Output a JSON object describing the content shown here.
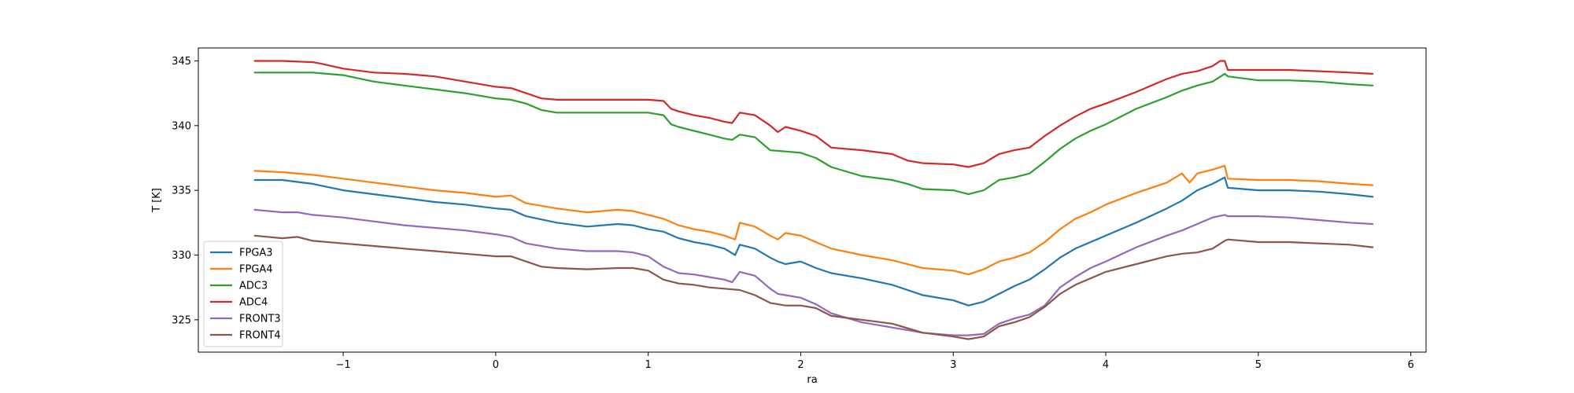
{
  "chart_data": {
    "type": "line",
    "title": "",
    "xlabel": "ra",
    "ylabel": "T [K]",
    "xlim": [
      -1.95,
      6.1
    ],
    "ylim": [
      322.5,
      346.0
    ],
    "xticks": [
      -1,
      0,
      1,
      2,
      3,
      4,
      5,
      6
    ],
    "xtick_labels": [
      "−1",
      "0",
      "1",
      "2",
      "3",
      "4",
      "5",
      "6"
    ],
    "yticks": [
      325,
      330,
      335,
      340,
      345
    ],
    "ytick_labels": [
      "325",
      "330",
      "335",
      "340",
      "345"
    ],
    "grid": false,
    "legend_position": "lower-left",
    "series": [
      {
        "name": "FPGA3",
        "color": "#1f77b4",
        "x": [
          -1.58,
          -1.4,
          -1.2,
          -1.0,
          -0.8,
          -0.6,
          -0.4,
          -0.2,
          0.0,
          0.1,
          0.2,
          0.4,
          0.6,
          0.8,
          0.9,
          1.0,
          1.1,
          1.2,
          1.3,
          1.4,
          1.5,
          1.57,
          1.6,
          1.7,
          1.8,
          1.85,
          1.9,
          2.0,
          2.1,
          2.2,
          2.4,
          2.6,
          2.8,
          3.0,
          3.1,
          3.2,
          3.3,
          3.4,
          3.5,
          3.6,
          3.7,
          3.8,
          3.9,
          4.0,
          4.2,
          4.4,
          4.5,
          4.6,
          4.7,
          4.78,
          4.8,
          5.0,
          5.2,
          5.4,
          5.6,
          5.75
        ],
        "y": [
          335.8,
          335.8,
          335.5,
          335.0,
          334.7,
          334.4,
          334.1,
          333.9,
          333.6,
          333.5,
          333.0,
          332.5,
          332.2,
          332.4,
          332.3,
          332.0,
          331.8,
          331.3,
          331.0,
          330.8,
          330.5,
          330.0,
          330.8,
          330.5,
          329.8,
          329.5,
          329.3,
          329.5,
          329.0,
          328.6,
          328.2,
          327.7,
          326.9,
          326.5,
          326.1,
          326.4,
          327.0,
          327.6,
          328.1,
          328.9,
          329.8,
          330.5,
          331.0,
          331.5,
          332.5,
          333.6,
          334.2,
          335.0,
          335.5,
          336.0,
          335.2,
          335.0,
          335.0,
          334.9,
          334.7,
          334.5
        ]
      },
      {
        "name": "FPGA4",
        "color": "#ff7f0e",
        "x": [
          -1.58,
          -1.4,
          -1.2,
          -1.0,
          -0.8,
          -0.6,
          -0.4,
          -0.2,
          0.0,
          0.1,
          0.2,
          0.4,
          0.6,
          0.8,
          0.9,
          1.0,
          1.1,
          1.2,
          1.3,
          1.4,
          1.5,
          1.57,
          1.6,
          1.7,
          1.8,
          1.85,
          1.9,
          2.0,
          2.1,
          2.2,
          2.4,
          2.6,
          2.8,
          3.0,
          3.1,
          3.2,
          3.3,
          3.4,
          3.5,
          3.6,
          3.7,
          3.8,
          3.9,
          4.0,
          4.2,
          4.4,
          4.5,
          4.55,
          4.6,
          4.7,
          4.78,
          4.8,
          5.0,
          5.2,
          5.4,
          5.6,
          5.75
        ],
        "y": [
          336.5,
          336.4,
          336.2,
          335.9,
          335.6,
          335.3,
          335.0,
          334.8,
          334.5,
          334.6,
          334.0,
          333.6,
          333.3,
          333.5,
          333.4,
          333.1,
          332.8,
          332.3,
          332.0,
          331.8,
          331.5,
          331.2,
          332.5,
          332.2,
          331.5,
          331.2,
          331.7,
          331.5,
          331.0,
          330.5,
          330.0,
          329.6,
          329.0,
          328.8,
          328.5,
          328.9,
          329.5,
          329.8,
          330.2,
          331.0,
          332.0,
          332.8,
          333.3,
          333.9,
          334.8,
          335.6,
          336.3,
          335.6,
          336.3,
          336.6,
          336.9,
          335.9,
          335.8,
          335.8,
          335.7,
          335.5,
          335.4
        ]
      },
      {
        "name": "ADC3",
        "color": "#2ca02c",
        "x": [
          -1.58,
          -1.4,
          -1.2,
          -1.0,
          -0.8,
          -0.6,
          -0.4,
          -0.2,
          0.0,
          0.1,
          0.2,
          0.3,
          0.4,
          0.6,
          0.8,
          1.0,
          1.1,
          1.15,
          1.2,
          1.3,
          1.4,
          1.5,
          1.55,
          1.6,
          1.7,
          1.75,
          1.8,
          1.9,
          2.0,
          2.1,
          2.2,
          2.4,
          2.6,
          2.7,
          2.8,
          3.0,
          3.1,
          3.2,
          3.3,
          3.4,
          3.5,
          3.6,
          3.7,
          3.8,
          3.9,
          4.0,
          4.2,
          4.4,
          4.5,
          4.6,
          4.7,
          4.78,
          4.8,
          5.0,
          5.2,
          5.4,
          5.6,
          5.75
        ],
        "y": [
          344.1,
          344.1,
          344.1,
          343.9,
          343.4,
          343.1,
          342.8,
          342.5,
          342.1,
          342.0,
          341.7,
          341.2,
          341.0,
          341.0,
          341.0,
          341.0,
          340.8,
          340.1,
          339.9,
          339.6,
          339.3,
          339.0,
          338.9,
          339.3,
          339.1,
          338.6,
          338.1,
          338.0,
          337.9,
          337.5,
          336.8,
          336.1,
          335.8,
          335.5,
          335.1,
          335.0,
          334.7,
          335.0,
          335.8,
          336.0,
          336.3,
          337.2,
          338.2,
          339.0,
          339.6,
          340.1,
          341.3,
          342.2,
          342.7,
          343.1,
          343.4,
          344.0,
          343.8,
          343.5,
          343.5,
          343.4,
          343.2,
          343.1
        ]
      },
      {
        "name": "ADC4",
        "color": "#d62728",
        "x": [
          -1.58,
          -1.4,
          -1.2,
          -1.15,
          -1.0,
          -0.8,
          -0.6,
          -0.4,
          -0.2,
          0.0,
          0.1,
          0.2,
          0.3,
          0.4,
          0.6,
          0.8,
          1.0,
          1.1,
          1.15,
          1.2,
          1.3,
          1.4,
          1.5,
          1.55,
          1.6,
          1.7,
          1.75,
          1.8,
          1.85,
          1.9,
          2.0,
          2.1,
          2.2,
          2.4,
          2.6,
          2.7,
          2.8,
          3.0,
          3.1,
          3.2,
          3.3,
          3.4,
          3.5,
          3.6,
          3.7,
          3.8,
          3.9,
          4.0,
          4.2,
          4.4,
          4.5,
          4.6,
          4.7,
          4.75,
          4.78,
          4.8,
          5.0,
          5.2,
          5.4,
          5.6,
          5.75
        ],
        "y": [
          345.0,
          345.0,
          344.9,
          344.8,
          344.4,
          344.1,
          344.0,
          343.8,
          343.4,
          343.0,
          342.9,
          342.5,
          342.1,
          342.0,
          342.0,
          342.0,
          342.0,
          341.9,
          341.3,
          341.1,
          340.8,
          340.6,
          340.3,
          340.2,
          341.0,
          340.8,
          340.4,
          340.0,
          339.5,
          339.9,
          339.6,
          339.2,
          338.3,
          338.1,
          337.8,
          337.3,
          337.1,
          337.0,
          336.8,
          337.1,
          337.8,
          338.1,
          338.3,
          339.2,
          340.0,
          340.7,
          341.3,
          341.7,
          342.6,
          343.6,
          344.0,
          344.2,
          344.6,
          345.0,
          345.0,
          344.3,
          344.3,
          344.3,
          344.2,
          344.1,
          344.0
        ]
      },
      {
        "name": "FRONT3",
        "color": "#9467bd",
        "x": [
          -1.58,
          -1.4,
          -1.3,
          -1.2,
          -1.0,
          -0.8,
          -0.6,
          -0.4,
          -0.2,
          0.0,
          0.1,
          0.2,
          0.4,
          0.6,
          0.8,
          0.9,
          1.0,
          1.1,
          1.2,
          1.3,
          1.4,
          1.5,
          1.55,
          1.6,
          1.7,
          1.8,
          1.85,
          1.9,
          2.0,
          2.1,
          2.2,
          2.4,
          2.6,
          2.8,
          3.0,
          3.1,
          3.2,
          3.3,
          3.4,
          3.5,
          3.6,
          3.7,
          3.8,
          3.9,
          4.0,
          4.2,
          4.4,
          4.5,
          4.6,
          4.7,
          4.78,
          4.8,
          5.0,
          5.2,
          5.4,
          5.6,
          5.75
        ],
        "y": [
          333.5,
          333.3,
          333.3,
          333.1,
          332.9,
          332.6,
          332.3,
          332.1,
          331.9,
          331.6,
          331.4,
          330.9,
          330.5,
          330.3,
          330.3,
          330.2,
          329.9,
          329.1,
          328.6,
          328.5,
          328.3,
          328.1,
          327.9,
          328.7,
          328.4,
          327.4,
          327.0,
          326.9,
          326.7,
          326.2,
          325.5,
          324.8,
          324.4,
          324.0,
          323.8,
          323.8,
          323.9,
          324.7,
          325.1,
          325.4,
          326.1,
          327.5,
          328.3,
          329.0,
          329.5,
          330.6,
          331.5,
          331.9,
          332.4,
          332.9,
          333.1,
          333.0,
          333.0,
          332.9,
          332.7,
          332.5,
          332.4
        ]
      },
      {
        "name": "FRONT4",
        "color": "#8c564b",
        "x": [
          -1.58,
          -1.4,
          -1.3,
          -1.2,
          -1.0,
          -0.8,
          -0.6,
          -0.4,
          -0.2,
          0.0,
          0.1,
          0.2,
          0.3,
          0.4,
          0.6,
          0.8,
          0.9,
          1.0,
          1.1,
          1.2,
          1.3,
          1.4,
          1.5,
          1.6,
          1.7,
          1.8,
          1.9,
          2.0,
          2.1,
          2.2,
          2.4,
          2.6,
          2.8,
          3.0,
          3.1,
          3.2,
          3.3,
          3.4,
          3.5,
          3.6,
          3.7,
          3.8,
          3.9,
          4.0,
          4.2,
          4.4,
          4.5,
          4.6,
          4.7,
          4.78,
          4.8,
          5.0,
          5.2,
          5.4,
          5.6,
          5.75
        ],
        "y": [
          331.5,
          331.3,
          331.4,
          331.1,
          330.9,
          330.7,
          330.5,
          330.3,
          330.1,
          329.9,
          329.9,
          329.5,
          329.1,
          329.0,
          328.9,
          329.0,
          329.0,
          328.8,
          328.1,
          327.8,
          327.7,
          327.5,
          327.4,
          327.3,
          326.9,
          326.3,
          326.1,
          326.1,
          325.9,
          325.3,
          325.0,
          324.7,
          324.0,
          323.7,
          323.5,
          323.7,
          324.5,
          324.8,
          325.2,
          326.0,
          327.0,
          327.7,
          328.2,
          328.7,
          329.3,
          329.9,
          330.1,
          330.2,
          330.5,
          331.1,
          331.2,
          331.0,
          331.0,
          330.9,
          330.8,
          330.6
        ]
      }
    ]
  }
}
